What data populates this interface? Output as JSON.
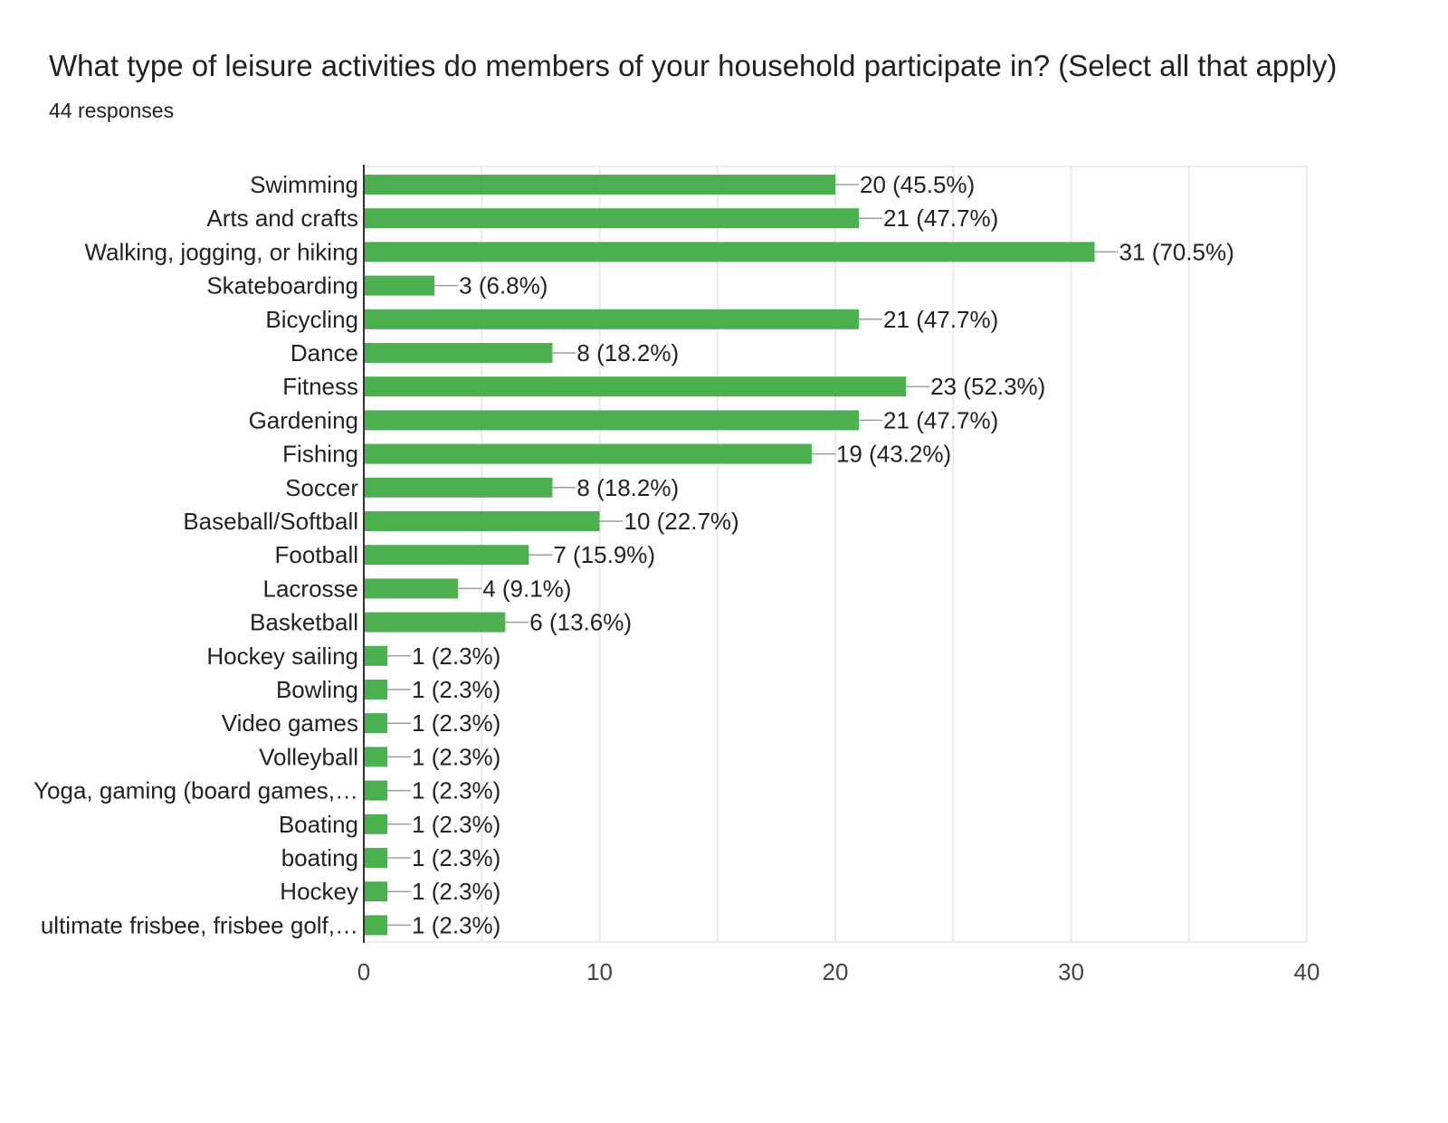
{
  "question": {
    "title": "What type of leisure activities do members of your household participate in? (Select all that apply)",
    "responses": "44 responses"
  },
  "colors": {
    "bar": "#4caf50",
    "grid": "#ebebeb",
    "axis": "#333333",
    "connector": "#9e9e9e"
  },
  "chart_data": {
    "type": "bar",
    "orientation": "horizontal",
    "xlim": [
      0,
      40
    ],
    "grid": true,
    "x_ticks": [
      "0",
      "10",
      "20",
      "30",
      "40"
    ],
    "categories": [
      "Swimming",
      "Arts and crafts",
      "Walking, jogging, or hiking",
      "Skateboarding",
      "Bicycling",
      "Dance",
      "Fitness",
      "Gardening",
      "Fishing",
      "Soccer",
      "Baseball/Softball",
      "Football",
      "Lacrosse",
      "Basketball",
      "Hockey sailing",
      "Bowling",
      "Video games",
      "Volleyball",
      "Yoga, gaming (board games,…",
      "Boating",
      "boating",
      "Hockey",
      "ultimate frisbee, frisbee golf,…"
    ],
    "values": [
      20,
      21,
      31,
      3,
      21,
      8,
      23,
      21,
      19,
      8,
      10,
      7,
      4,
      6,
      1,
      1,
      1,
      1,
      1,
      1,
      1,
      1,
      1
    ],
    "data_labels": [
      "20 (45.5%)",
      "21 (47.7%)",
      "31 (70.5%)",
      "3 (6.8%)",
      "21 (47.7%)",
      "8 (18.2%)",
      "23 (52.3%)",
      "21 (47.7%)",
      "19 (43.2%)",
      "8 (18.2%)",
      "10 (22.7%)",
      "7 (15.9%)",
      "4 (9.1%)",
      "6 (13.6%)",
      "1 (2.3%)",
      "1 (2.3%)",
      "1 (2.3%)",
      "1 (2.3%)",
      "1 (2.3%)",
      "1 (2.3%)",
      "1 (2.3%)",
      "1 (2.3%)",
      "1 (2.3%)"
    ]
  }
}
